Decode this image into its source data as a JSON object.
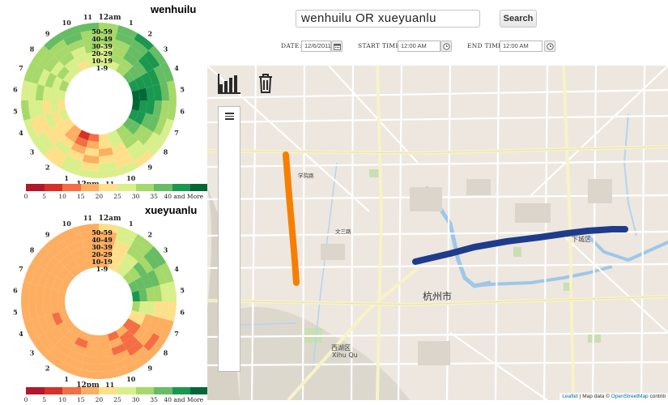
{
  "search": {
    "query": "wenhuilu  OR  xueyuanlu",
    "button_label": "Search"
  },
  "filters": {
    "date_label": "DATE:",
    "date_value": "12/6/2011",
    "start_label": "START TIME:",
    "start_value": "12:00 AM",
    "end_label": "END TIME:",
    "end_value": "12:00 AM"
  },
  "rings": [
    {
      "title": "wenhuilu",
      "band_labels": [
        "50-59",
        "40-49",
        "30-39",
        "20-29",
        "10-19",
        "1-9"
      ]
    },
    {
      "title": "xueyuanlu",
      "band_labels": [
        "50-59",
        "40-49",
        "30-39",
        "20-29",
        "10-19",
        "1-9"
      ]
    }
  ],
  "hour_labels": [
    "12am",
    "1",
    "2",
    "3",
    "4",
    "5",
    "6",
    "7",
    "8",
    "9",
    "10",
    "11",
    "12pm",
    "1",
    "2",
    "3",
    "4",
    "5",
    "6",
    "7",
    "8",
    "9",
    "10",
    "11"
  ],
  "legend": {
    "ticks": [
      "0",
      "5",
      "10",
      "15",
      "20",
      "25",
      "30",
      "35",
      "40 and More"
    ],
    "colors": [
      "#b2182b",
      "#d73027",
      "#f46d43",
      "#fdae61",
      "#fee08b",
      "#d9ef8b",
      "#a6d96a",
      "#66bd63",
      "#1a9850",
      "#006837"
    ]
  },
  "map": {
    "labels": {
      "hangzhou": "杭州市",
      "xicheng": "西湖区",
      "xihu_qu": "Xihu Qu",
      "xiacheng": "下城区",
      "wenhui": "文三路",
      "xueyuan": "学院路"
    },
    "routes": [
      {
        "name": "wenhuilu",
        "color": "#1f3c8c"
      },
      {
        "name": "xueyuanlu",
        "color": "#f77f00"
      }
    ],
    "attribution_leaflet": "Leaflet",
    "attribution_text": "| Map data ©",
    "attribution_osm": "OpenStreetMap",
    "attribution_tail": "contrib"
  }
}
